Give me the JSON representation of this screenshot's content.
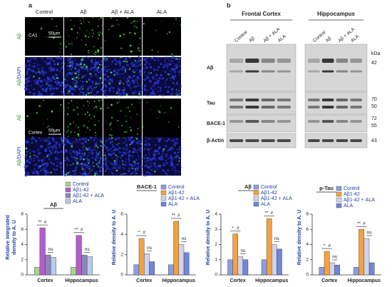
{
  "panel_a": {
    "label": "a",
    "columns": [
      "Control",
      "Aβ",
      "Aβ + ALA",
      "ALA"
    ],
    "rows": [
      {
        "label_parts": [
          "Aβ"
        ]
      },
      {
        "label_parts": [
          "Aβ",
          "/DAPI"
        ]
      },
      {
        "label_parts": [
          "Aβ"
        ]
      },
      {
        "label_parts": [
          "Aβ",
          "/DAPI"
        ]
      }
    ],
    "region_labels": [
      "CA1",
      "Cortex"
    ],
    "scale_bar": "50μm"
  },
  "panel_b": {
    "label": "b",
    "regions": [
      "Frontal Cortex",
      "Hippocampus"
    ],
    "lanes": [
      "Control",
      "Aβ",
      "Aβ + ALA",
      "ALA"
    ],
    "unit": "kDa",
    "blots": [
      {
        "name": "Aβ",
        "markers": [
          "42"
        ]
      },
      {
        "name": "Tau",
        "markers": [
          "70",
          "50"
        ]
      },
      {
        "name": "BACE-1",
        "markers": [
          "72",
          "55"
        ]
      },
      {
        "name": "β-Actin",
        "markers": [
          "43"
        ]
      }
    ]
  },
  "chart_data": [
    {
      "type": "bar",
      "title": "Aβ",
      "y_label": [
        "Relative integrated",
        "density to A. U"
      ],
      "categories": [
        "Cortex",
        "Hippocampus"
      ],
      "series": [
        {
          "name": "Control",
          "color": "#a9d68e",
          "values": [
            1.0,
            1.0
          ]
        },
        {
          "name": "Aβ1-42",
          "color": "#b35fc9",
          "values": [
            6.2,
            5.2
          ]
        },
        {
          "name": "Aβ1-42 + ALA",
          "color": "#8d86b9",
          "values": [
            2.6,
            2.6
          ]
        },
        {
          "name": "ALA",
          "color": "#b9cbec",
          "values": [
            2.3,
            2.4
          ]
        }
      ],
      "ylim": [
        0,
        8
      ],
      "yticks": [
        0,
        2,
        4,
        6,
        8
      ],
      "annotations": [
        [
          "**",
          "#",
          "ns"
        ],
        [
          "**",
          "#",
          "ns"
        ]
      ]
    },
    {
      "type": "bar",
      "title": "BACE-1",
      "y_label": [
        "Relative density to A. U"
      ],
      "categories": [
        "Cortex",
        "Hippocampus"
      ],
      "series": [
        {
          "name": "Control",
          "color": "#8c9ee2",
          "values": [
            1.0,
            1.0
          ]
        },
        {
          "name": "Aβ1-42",
          "color": "#f4a23e",
          "values": [
            3.6,
            5.3
          ]
        },
        {
          "name": "Aβ1-42 + ALA",
          "color": "#d2d2ea",
          "values": [
            2.1,
            3.0
          ]
        },
        {
          "name": "ALA",
          "color": "#6f86d9",
          "values": [
            1.3,
            2.2
          ]
        }
      ],
      "ylim": [
        0,
        6
      ],
      "yticks": [
        0,
        2,
        4,
        6
      ],
      "annotations": [
        [
          "*",
          "#",
          "ns"
        ],
        [
          "**",
          "#",
          "ns"
        ]
      ]
    },
    {
      "type": "bar",
      "title": "Aβ",
      "y_label": [
        "Relative density to A. U"
      ],
      "categories": [
        "Cortex",
        "Hippocampus"
      ],
      "series": [
        {
          "name": "Control",
          "color": "#8c9ee2",
          "values": [
            1.0,
            1.0
          ]
        },
        {
          "name": "Aβ1-42",
          "color": "#f4a23e",
          "values": [
            2.7,
            3.7
          ]
        },
        {
          "name": "Aβ1-42 + ALA",
          "color": "#d2d2ea",
          "values": [
            1.2,
            2.0
          ]
        },
        {
          "name": "ALA",
          "color": "#6f86d9",
          "values": [
            1.0,
            1.7
          ]
        }
      ],
      "ylim": [
        0,
        4
      ],
      "yticks": [
        0,
        1,
        2,
        3,
        4
      ],
      "annotations": [
        [
          "*",
          "#",
          "ns"
        ],
        [
          "**",
          "#",
          "ns"
        ]
      ]
    },
    {
      "type": "bar",
      "title": "p-Tau",
      "y_label": [
        "Relative density to A. U"
      ],
      "categories": [
        "Cortex",
        "Hippocampus"
      ],
      "series": [
        {
          "name": "Control",
          "color": "#8c9ee2",
          "values": [
            1.0,
            1.0
          ]
        },
        {
          "name": "Aβ1-42",
          "color": "#f4a23e",
          "values": [
            3.1,
            6.0
          ]
        },
        {
          "name": "Aβ1-42 + ALA",
          "color": "#d2d2ea",
          "values": [
            1.6,
            4.8
          ]
        },
        {
          "name": "ALA",
          "color": "#6f86d9",
          "values": [
            1.3,
            1.6
          ]
        }
      ],
      "ylim": [
        0,
        8
      ],
      "yticks": [
        0,
        2,
        4,
        6,
        8
      ],
      "annotations": [
        [
          "*",
          "#",
          "ns"
        ],
        [
          "**",
          "#",
          "ns"
        ]
      ]
    }
  ]
}
